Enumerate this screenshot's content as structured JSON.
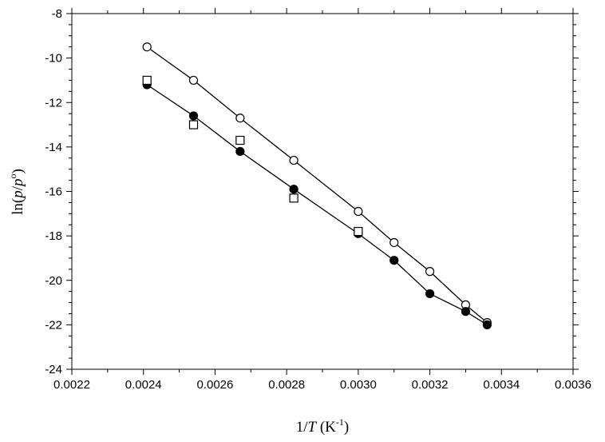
{
  "chart_data": {
    "type": "scatter",
    "xlabel": [
      "1/",
      "T",
      " (K",
      "-1",
      ")"
    ],
    "ylabel": [
      "ln(",
      "p",
      "/",
      "p",
      "o",
      ")"
    ],
    "xlim": [
      0.0022,
      0.0036
    ],
    "xticks": [
      0.0022,
      0.0024,
      0.0026,
      0.0028,
      {
        "value": 0.003,
        "label": "0.0030"
      },
      0.0032,
      0.0034,
      0.0036
    ],
    "ylim": [
      -24,
      -8
    ],
    "yticks": [
      -8,
      -10,
      -12,
      -14,
      -16,
      -18,
      -20,
      -22,
      -24
    ],
    "series": [
      {
        "marker": "open-circle",
        "line": true,
        "color": "#000000",
        "x": [
          0.00241,
          0.00254,
          0.00267,
          0.00282,
          0.003,
          0.0031,
          0.0032,
          0.0033,
          0.00336
        ],
        "values": [
          -9.5,
          -11.0,
          -12.7,
          -14.6,
          -16.9,
          -18.3,
          -19.6,
          -21.1,
          -21.9
        ]
      },
      {
        "marker": "filled-circle",
        "line": true,
        "color": "#000000",
        "x": [
          0.00241,
          0.00254,
          0.00267,
          0.00282,
          0.003,
          0.0031,
          0.0032,
          0.0033,
          0.00336
        ],
        "values": [
          -11.2,
          -12.6,
          -14.2,
          -15.9,
          -17.9,
          -19.1,
          -20.6,
          -21.4,
          -22.0
        ]
      },
      {
        "marker": "open-square",
        "line": false,
        "color": "#000000",
        "x": [
          0.00241,
          0.00254,
          0.00267,
          0.00282,
          0.003
        ],
        "values": [
          -11.0,
          -13.0,
          -13.7,
          -16.3,
          -17.8
        ]
      }
    ]
  }
}
